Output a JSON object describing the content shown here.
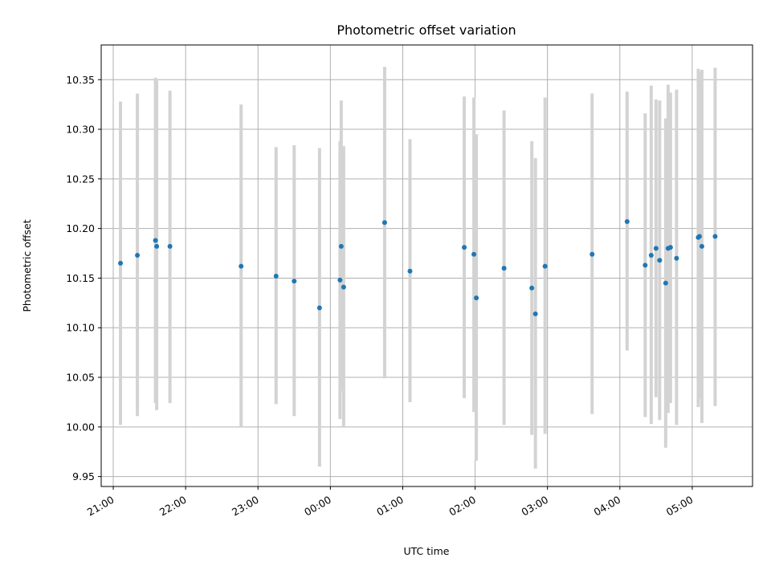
{
  "chart_data": {
    "type": "scatter",
    "title": "Photometric offset variation",
    "xlabel": "UTC time",
    "ylabel": "Photometric offset",
    "x_unit": "UTC time (day 1 evening to day 2 morning)",
    "xlim": [
      "20:50",
      "05:50"
    ],
    "ylim": [
      9.94,
      10.385
    ],
    "yticks": [
      9.95,
      10.0,
      10.05,
      10.1,
      10.15,
      10.2,
      10.25,
      10.3,
      10.35
    ],
    "ytick_labels": [
      "9.95",
      "10.00",
      "10.05",
      "10.10",
      "10.15",
      "10.20",
      "10.25",
      "10.30",
      "10.35"
    ],
    "xticks": [
      "21:00",
      "22:00",
      "23:00",
      "00:00",
      "01:00",
      "02:00",
      "03:00",
      "04:00",
      "05:00"
    ],
    "grid": true,
    "colors": {
      "point": "#1f77b4",
      "errorbar": "#d3d3d3",
      "grid": "#b0b0b0"
    },
    "points": [
      {
        "time": "21:06",
        "y": 10.165,
        "lo": 10.002,
        "hi": 10.328
      },
      {
        "time": "21:20",
        "y": 10.173,
        "lo": 10.011,
        "hi": 10.336
      },
      {
        "time": "21:35",
        "y": 10.188,
        "lo": 10.024,
        "hi": 10.352
      },
      {
        "time": "21:36",
        "y": 10.182,
        "lo": 10.017,
        "hi": 10.349
      },
      {
        "time": "21:47",
        "y": 10.182,
        "lo": 10.024,
        "hi": 10.339
      },
      {
        "time": "22:46",
        "y": 10.162,
        "lo": 10.0,
        "hi": 10.325
      },
      {
        "time": "23:15",
        "y": 10.152,
        "lo": 10.023,
        "hi": 10.282
      },
      {
        "time": "23:30",
        "y": 10.147,
        "lo": 10.011,
        "hi": 10.284
      },
      {
        "time": "23:51",
        "y": 10.12,
        "lo": 9.96,
        "hi": 10.281
      },
      {
        "time": "00:08",
        "y": 10.148,
        "lo": 10.008,
        "hi": 10.288
      },
      {
        "time": "00:09",
        "y": 10.182,
        "lo": 10.036,
        "hi": 10.329
      },
      {
        "time": "00:11",
        "y": 10.141,
        "lo": 10.0,
        "hi": 10.283
      },
      {
        "time": "00:45",
        "y": 10.206,
        "lo": 10.049,
        "hi": 10.363
      },
      {
        "time": "01:06",
        "y": 10.157,
        "lo": 10.025,
        "hi": 10.29
      },
      {
        "time": "01:51",
        "y": 10.181,
        "lo": 10.029,
        "hi": 10.333
      },
      {
        "time": "01:59",
        "y": 10.174,
        "lo": 10.015,
        "hi": 10.332
      },
      {
        "time": "02:01",
        "y": 10.13,
        "lo": 9.966,
        "hi": 10.295
      },
      {
        "time": "02:24",
        "y": 10.16,
        "lo": 10.002,
        "hi": 10.319
      },
      {
        "time": "02:47",
        "y": 10.14,
        "lo": 9.992,
        "hi": 10.288
      },
      {
        "time": "02:50",
        "y": 10.114,
        "lo": 9.958,
        "hi": 10.271
      },
      {
        "time": "02:58",
        "y": 10.162,
        "lo": 9.993,
        "hi": 10.332
      },
      {
        "time": "03:37",
        "y": 10.174,
        "lo": 10.013,
        "hi": 10.336
      },
      {
        "time": "04:06",
        "y": 10.207,
        "lo": 10.077,
        "hi": 10.338
      },
      {
        "time": "04:21",
        "y": 10.163,
        "lo": 10.01,
        "hi": 10.316
      },
      {
        "time": "04:26",
        "y": 10.173,
        "lo": 10.003,
        "hi": 10.344
      },
      {
        "time": "04:30",
        "y": 10.18,
        "lo": 10.03,
        "hi": 10.33
      },
      {
        "time": "04:33",
        "y": 10.168,
        "lo": 10.007,
        "hi": 10.329
      },
      {
        "time": "04:38",
        "y": 10.145,
        "lo": 9.979,
        "hi": 10.311
      },
      {
        "time": "04:40",
        "y": 10.18,
        "lo": 10.014,
        "hi": 10.345
      },
      {
        "time": "04:42",
        "y": 10.181,
        "lo": 10.024,
        "hi": 10.337
      },
      {
        "time": "04:47",
        "y": 10.17,
        "lo": 10.002,
        "hi": 10.34
      },
      {
        "time": "05:05",
        "y": 10.191,
        "lo": 10.02,
        "hi": 10.361
      },
      {
        "time": "05:06",
        "y": 10.192,
        "lo": 10.028,
        "hi": 10.358
      },
      {
        "time": "05:08",
        "y": 10.182,
        "lo": 10.004,
        "hi": 10.36
      },
      {
        "time": "05:19",
        "y": 10.192,
        "lo": 10.021,
        "hi": 10.362
      }
    ]
  }
}
